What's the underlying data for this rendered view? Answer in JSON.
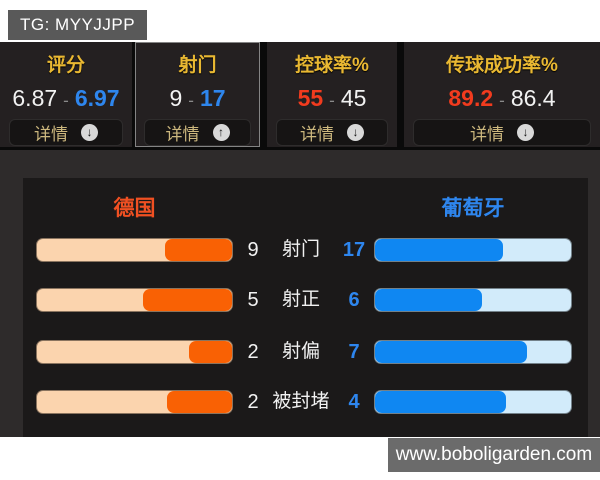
{
  "header": {
    "tg_label": "TG: MYYJJPP"
  },
  "stat_cards": [
    {
      "title": "评分",
      "home": "6.87",
      "separator": "-",
      "away": "6.97",
      "highlight": "away",
      "selected": false,
      "details_label": "详情",
      "details_icon": "down-arrow-icon",
      "details_glyph": "↓"
    },
    {
      "title": "射门",
      "home": "9",
      "separator": "-",
      "away": "17",
      "highlight": "away",
      "selected": true,
      "details_label": "详情",
      "details_icon": "up-arrow-icon",
      "details_glyph": "↑"
    },
    {
      "title": "控球率%",
      "home": "55",
      "separator": "-",
      "away": "45",
      "highlight": "home",
      "selected": false,
      "details_label": "详情",
      "details_icon": "down-arrow-icon",
      "details_glyph": "↓"
    },
    {
      "title": "传球成功率%",
      "home": "89.2",
      "separator": "-",
      "away": "86.4",
      "highlight": "home",
      "selected": false,
      "details_label": "详情",
      "details_icon": "down-arrow-icon",
      "details_glyph": "↓"
    }
  ],
  "comparison": {
    "home_team": "德国",
    "away_team": "葡萄牙",
    "rows": [
      {
        "label": "射门",
        "home": 9,
        "away": 17
      },
      {
        "label": "射正",
        "home": 5,
        "away": 6
      },
      {
        "label": "射偏",
        "home": 2,
        "away": 7
      },
      {
        "label": "被封堵",
        "home": 2,
        "away": 4
      }
    ]
  },
  "footer": {
    "watermark": "www.boboligarden.com"
  },
  "colors": {
    "title_yellow": "#e9b832",
    "away_blue": "#2e86ee",
    "home_red": "#f23b1e",
    "home_bar_fill": "#f96104",
    "home_bar_track": "#fbd4ae",
    "away_bar_fill": "#0f87f2",
    "away_bar_track": "#d2ebfa",
    "home_team_name": "#f05022",
    "panel_bg": "#1b1919",
    "section_bg": "#2e2b2b",
    "card_bg": "#242021"
  }
}
